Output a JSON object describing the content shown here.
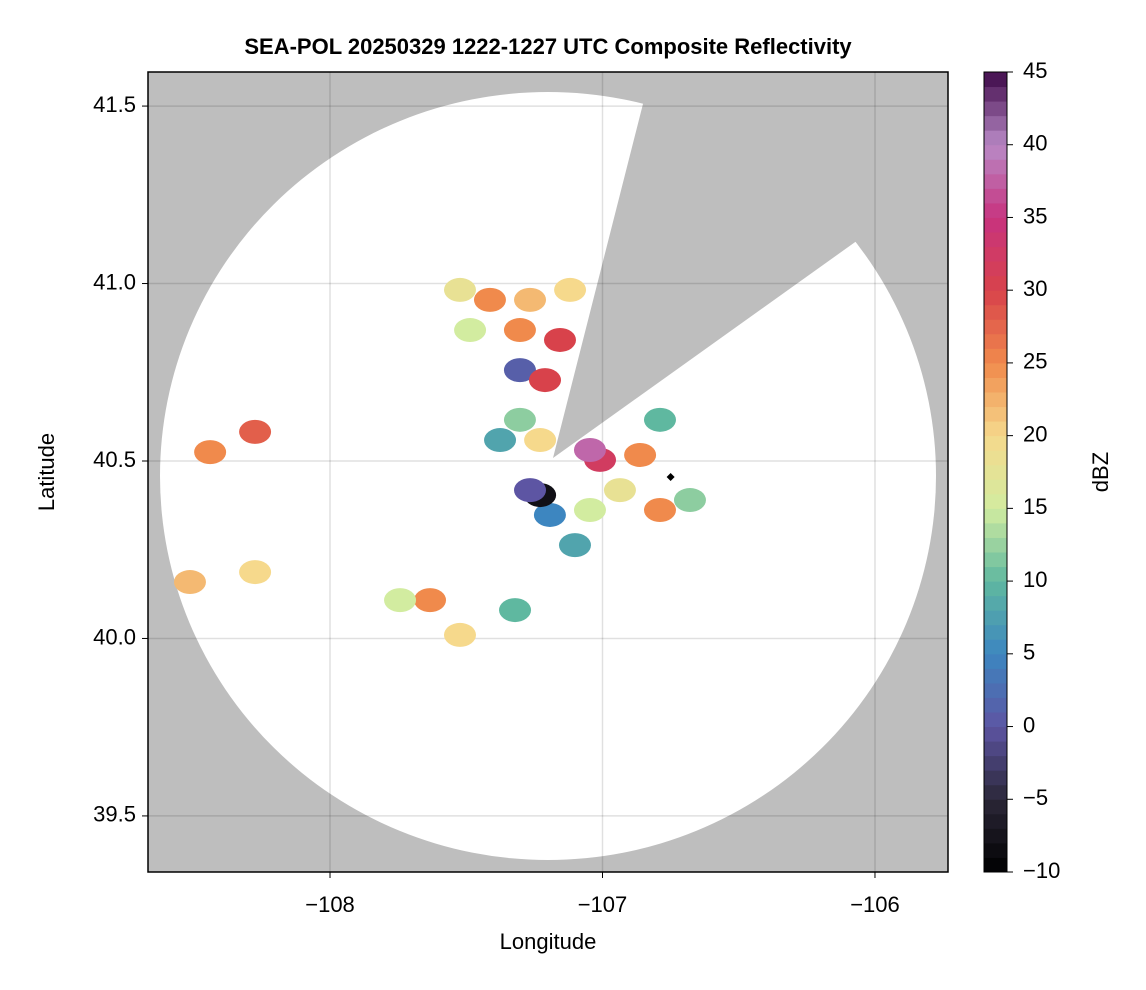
{
  "chart_data": {
    "type": "radar-map",
    "title": "SEA-POL 20250329 1222-1227 UTC Composite Reflectivity",
    "xlabel": "Longitude",
    "ylabel": "Latitude",
    "xlim": [
      -108.668,
      -105.732
    ],
    "ylim": [
      39.342,
      41.596
    ],
    "xticks": [
      {
        "value": -108,
        "label": "−108"
      },
      {
        "value": -107,
        "label": "−107"
      },
      {
        "value": -106,
        "label": "−106"
      }
    ],
    "yticks": [
      {
        "value": 39.5,
        "label": "39.5"
      },
      {
        "value": 40,
        "label": "40.0"
      },
      {
        "value": 40.5,
        "label": "40.5"
      },
      {
        "value": 41,
        "label": "41.0"
      },
      {
        "value": 41.5,
        "label": "41.5"
      }
    ],
    "grid": true,
    "colorbar": {
      "label": "dBZ",
      "clim": [
        -10,
        45
      ],
      "ticks": [
        {
          "value": -10,
          "label": "−10"
        },
        {
          "value": -5,
          "label": "−5"
        },
        0,
        5,
        10,
        15,
        20,
        25,
        30,
        35,
        40,
        45
      ],
      "colormap": [
        "#000000",
        "#2b2738",
        "#5d55a3",
        "#3d86c0",
        "#5fb8a0",
        "#d2eca0",
        "#f6d98c",
        "#f08a4c",
        "#d8424b",
        "#c7337f",
        "#b98ac6",
        "#3f0a4a"
      ]
    },
    "x": [
      -107.523,
      -107.413,
      -107.266,
      -107.119,
      -107.156,
      -107.303,
      -107.486,
      -107.303,
      -107.211,
      -107.303,
      -107.229,
      -107.376,
      -107.009,
      -107.046,
      -106.862,
      -106.936,
      -106.789,
      -106.679,
      -107.046,
      -107.193,
      -107.229,
      -107.266,
      -107.101,
      -106.789,
      -108.275,
      -108.44,
      -108.275,
      -108.514,
      -107.633,
      -107.743,
      -107.523,
      -107.321
    ],
    "y": [
      40.982,
      40.954,
      40.954,
      40.982,
      40.841,
      40.869,
      40.869,
      40.756,
      40.728,
      40.616,
      40.559,
      40.559,
      40.503,
      40.531,
      40.517,
      40.418,
      40.362,
      40.39,
      40.362,
      40.348,
      40.404,
      40.418,
      40.263,
      40.616,
      40.582,
      40.525,
      40.187,
      40.159,
      40.108,
      40.108,
      40.01,
      40.08
    ],
    "values": [
      18,
      25,
      22,
      20,
      30,
      25,
      15,
      1,
      30,
      12,
      20,
      8,
      32,
      38,
      25,
      18,
      25,
      12,
      15,
      5,
      -8,
      0,
      8,
      10,
      28,
      25,
      20,
      22,
      25,
      15,
      20,
      10
    ],
    "markers": [
      {
        "x": -106.75,
        "y": 40.455
      }
    ]
  }
}
